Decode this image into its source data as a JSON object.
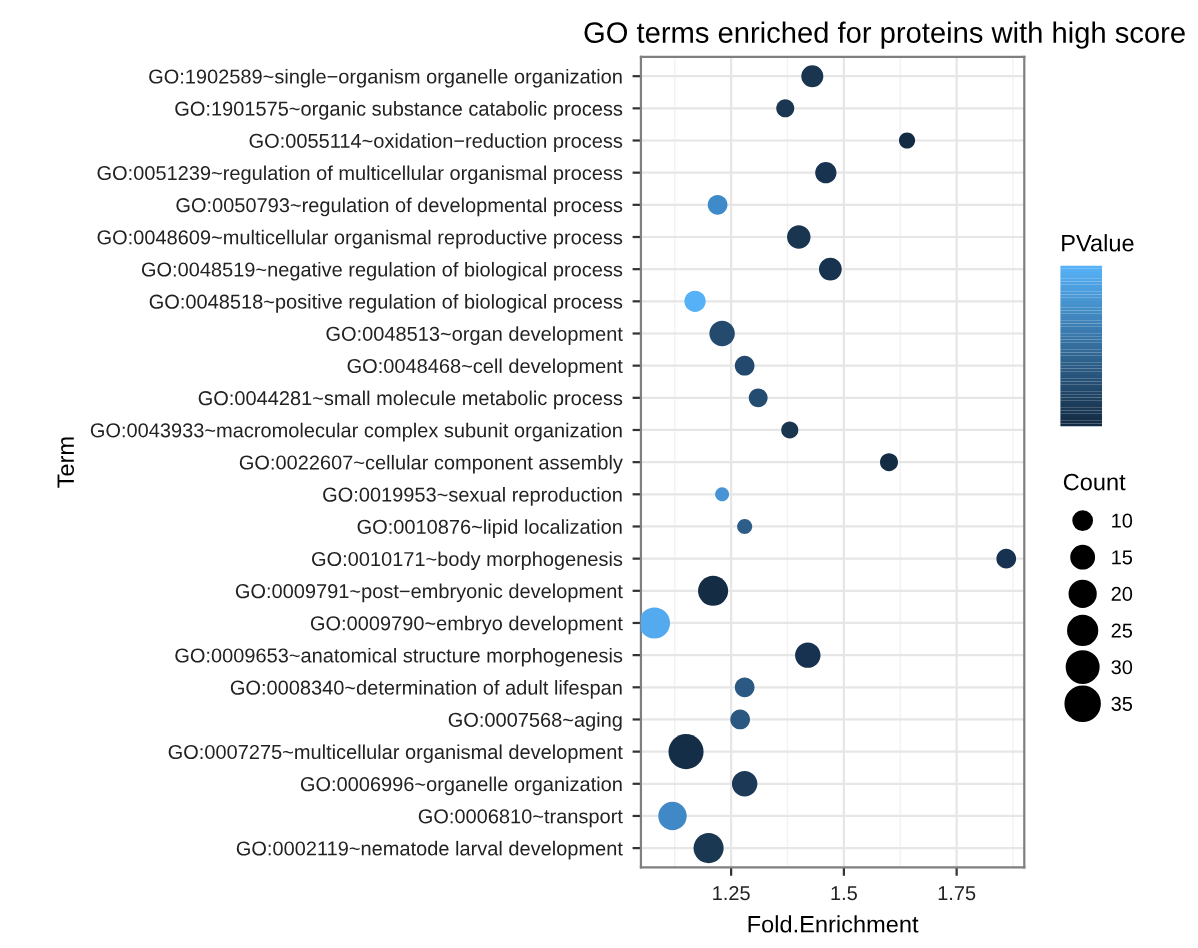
{
  "chart_data": {
    "type": "bubble",
    "title": "GO terms enriched for proteins with high score",
    "xlabel": "Fold.Enrichment",
    "ylabel": "Term",
    "clabel": "PValue",
    "legend_title": "Count",
    "categories": [
      "GO:1902589~single−organism organelle organization",
      "GO:1901575~organic substance catabolic process",
      "GO:0055114~oxidation−reduction process",
      "GO:0051239~regulation of multicellular organismal process",
      "GO:0050793~regulation of developmental process",
      "GO:0048609~multicellular organismal reproductive process",
      "GO:0048519~negative regulation of biological process",
      "GO:0048518~positive regulation of biological process",
      "GO:0048513~organ development",
      "GO:0048468~cell development",
      "GO:0044281~small molecule metabolic process",
      "GO:0043933~macromolecular complex subunit organization",
      "GO:0022607~cellular component assembly",
      "GO:0019953~sexual reproduction",
      "GO:0010876~lipid localization",
      "GO:0010171~body morphogenesis",
      "GO:0009791~post−embryonic development",
      "GO:0009790~embryo development",
      "GO:0009653~anatomical structure morphogenesis",
      "GO:0008340~determination of adult lifespan",
      "GO:0007568~aging",
      "GO:0007275~multicellular organismal development",
      "GO:0006996~organelle organization",
      "GO:0006810~transport",
      "GO:0002119~nematode larval development"
    ],
    "values": [
      1.43,
      1.37,
      1.64,
      1.46,
      1.22,
      1.4,
      1.47,
      1.17,
      1.23,
      1.28,
      1.31,
      1.38,
      1.6,
      1.23,
      1.28,
      1.86,
      1.21,
      1.08,
      1.42,
      1.28,
      1.27,
      1.15,
      1.28,
      1.12,
      1.2
    ],
    "sizes": [
      15,
      10,
      8,
      14,
      12,
      17,
      16,
      14,
      20,
      12,
      11,
      9,
      10,
      6,
      7,
      12,
      28,
      30,
      20,
      12,
      12,
      38,
      20,
      25,
      28
    ],
    "size_legend": [
      10,
      15,
      20,
      25,
      30,
      35
    ],
    "colors": [
      "#1a3550",
      "#1b3651",
      "#132b43",
      "#183350",
      "#3f8ac8",
      "#1a3550",
      "#183350",
      "#56b1f7",
      "#244a6e",
      "#234a6e",
      "#244b70",
      "#1a3550",
      "#142d45",
      "#4793d4",
      "#2d5d89",
      "#173150",
      "#142d45",
      "#53aaef",
      "#173150",
      "#2b5983",
      "#2a5880",
      "#152e47",
      "#1c3a58",
      "#4088c6",
      "#1b3853"
    ],
    "orientation": "horizontal",
    "xlim": [
      1.05,
      1.9
    ],
    "xticks": [
      1.25,
      1.5,
      1.75
    ],
    "grid": true
  }
}
